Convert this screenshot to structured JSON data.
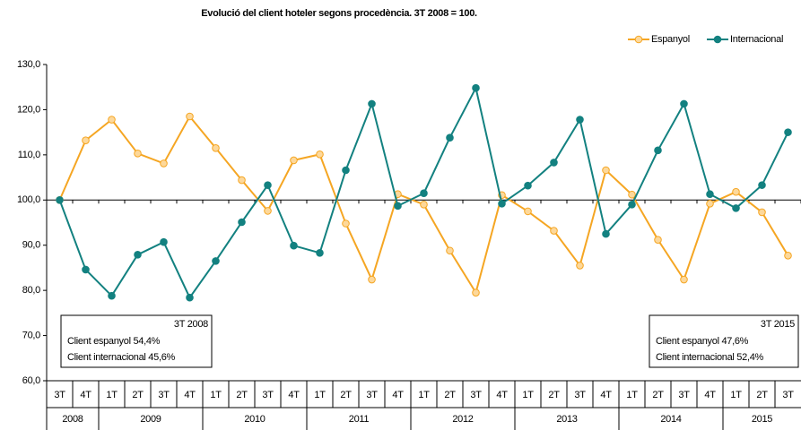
{
  "chart_data": {
    "type": "line",
    "title": "Evolució del client hoteler segons procedència. 3T 2008 = 100.",
    "categories": [
      "3T",
      "4T",
      "1T",
      "2T",
      "3T",
      "4T",
      "1T",
      "2T",
      "3T",
      "4T",
      "1T",
      "2T",
      "3T",
      "4T",
      "1T",
      "2T",
      "3T",
      "4T",
      "1T",
      "2T",
      "3T",
      "4T",
      "1T",
      "2T",
      "3T",
      "4T",
      "1T",
      "2T",
      "3T"
    ],
    "year_groups": [
      {
        "name": "2008",
        "count": 2
      },
      {
        "name": "2009",
        "count": 4
      },
      {
        "name": "2010",
        "count": 4
      },
      {
        "name": "2011",
        "count": 4
      },
      {
        "name": "2012",
        "count": 4
      },
      {
        "name": "2013",
        "count": 4
      },
      {
        "name": "2014",
        "count": 4
      },
      {
        "name": "2015",
        "count": 3
      }
    ],
    "series": [
      {
        "name": "Espanyol",
        "color": "#f5a623",
        "marker_fill": "#fdd89a",
        "values": [
          100.0,
          113.2,
          117.8,
          110.3,
          108.1,
          118.5,
          111.5,
          104.4,
          97.6,
          108.8,
          110.1,
          94.8,
          82.4,
          101.3,
          99.0,
          88.8,
          79.5,
          101.1,
          97.5,
          93.2,
          85.5,
          106.6,
          101.2,
          91.2,
          82.4,
          99.2,
          101.8,
          97.3,
          87.7
        ]
      },
      {
        "name": "Internacional",
        "color": "#138180",
        "marker_fill": "#138180",
        "values": [
          100.0,
          84.6,
          78.8,
          87.9,
          90.7,
          78.4,
          86.5,
          95.1,
          103.3,
          89.9,
          88.3,
          106.6,
          121.3,
          98.7,
          101.5,
          113.8,
          124.8,
          99.2,
          103.2,
          108.3,
          117.8,
          92.5,
          99.0,
          111.0,
          121.3,
          101.3,
          98.2,
          103.3,
          115.0
        ]
      }
    ],
    "ylim": [
      60,
      130
    ],
    "yticks": [
      {
        "value": 60,
        "label": "60,0"
      },
      {
        "value": 70,
        "label": "70,0"
      },
      {
        "value": 80,
        "label": "80,0"
      },
      {
        "value": 90,
        "label": "90,0"
      },
      {
        "value": 100,
        "label": "100,0"
      },
      {
        "value": 110,
        "label": "110,0"
      },
      {
        "value": 120,
        "label": "120,0"
      },
      {
        "value": 130,
        "label": "130,0"
      }
    ],
    "crossing": 100,
    "legend": "top-right",
    "annotations": [
      {
        "title": "3T 2008",
        "lines": [
          "Client espanyol 54,4%",
          "Client internacional 45,6%"
        ]
      },
      {
        "title": "3T 2015",
        "lines": [
          "Client espanyol 47,6%",
          "Client internacional 52,4%"
        ]
      }
    ]
  }
}
